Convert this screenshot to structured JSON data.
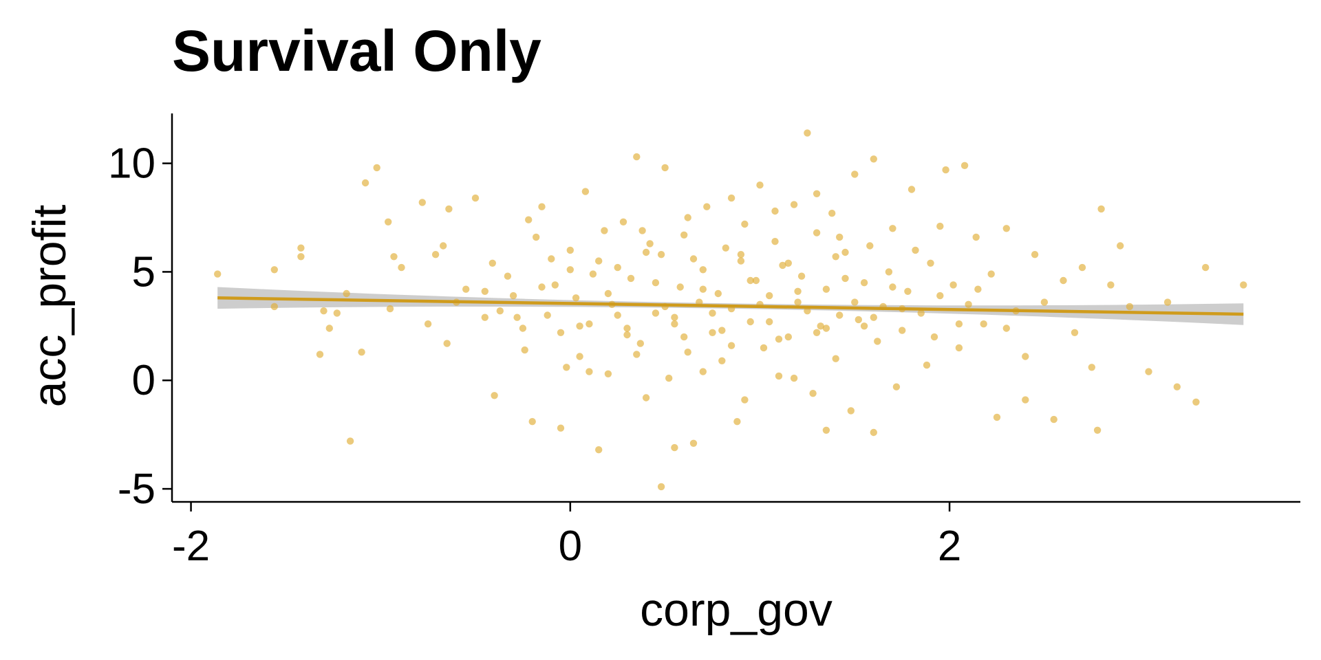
{
  "chart_data": {
    "type": "scatter",
    "title": "Survival Only",
    "xlabel": "corp_gov",
    "ylabel": "acc_profit",
    "xlim": [
      -2.1,
      3.85
    ],
    "ylim": [
      -5.6,
      12.3
    ],
    "xticks": [
      -2,
      0,
      2
    ],
    "xtick_labels": [
      "-2",
      "0",
      "2"
    ],
    "yticks": [
      -5,
      0,
      5,
      10
    ],
    "ytick_labels": [
      "-5",
      "0",
      "5",
      "10"
    ],
    "grid": false,
    "legend": "none",
    "point_color": "#e0ad35",
    "point_opacity": 0.65,
    "line_color": "#cf9b1c",
    "band_color": "#c8c8c8",
    "regression": {
      "x": [
        -1.86,
        3.55
      ],
      "y": [
        3.8,
        3.05
      ],
      "ci_half_width_ends": 0.5,
      "ci_half_width_center": 0.12
    },
    "points": [
      [
        -1.86,
        4.9
      ],
      [
        -1.56,
        5.1
      ],
      [
        -1.56,
        3.4
      ],
      [
        -1.42,
        6.1
      ],
      [
        -1.42,
        5.7
      ],
      [
        -1.32,
        1.2
      ],
      [
        -1.27,
        2.4
      ],
      [
        -1.23,
        3.1
      ],
      [
        -1.18,
        4.0
      ],
      [
        -1.16,
        -2.8
      ],
      [
        -1.08,
        9.1
      ],
      [
        -1.02,
        9.8
      ],
      [
        -0.96,
        7.3
      ],
      [
        -0.93,
        5.7
      ],
      [
        -0.89,
        5.2
      ],
      [
        -0.78,
        8.2
      ],
      [
        -0.75,
        2.6
      ],
      [
        -0.71,
        5.8
      ],
      [
        -0.67,
        6.2
      ],
      [
        -0.64,
        7.9
      ],
      [
        -0.6,
        3.6
      ],
      [
        -0.55,
        4.2
      ],
      [
        -0.5,
        8.4
      ],
      [
        -0.45,
        4.1
      ],
      [
        -0.41,
        5.4
      ],
      [
        -0.37,
        3.2
      ],
      [
        -0.33,
        4.8
      ],
      [
        -0.28,
        2.9
      ],
      [
        -0.24,
        1.4
      ],
      [
        -0.22,
        7.4
      ],
      [
        -0.18,
        6.6
      ],
      [
        -0.15,
        8.0
      ],
      [
        -0.12,
        3.0
      ],
      [
        -0.1,
        5.6
      ],
      [
        -0.08,
        4.4
      ],
      [
        -0.05,
        2.2
      ],
      [
        -0.02,
        0.6
      ],
      [
        0.0,
        6.0
      ],
      [
        0.03,
        3.8
      ],
      [
        0.05,
        1.1
      ],
      [
        0.08,
        8.7
      ],
      [
        0.1,
        2.6
      ],
      [
        0.12,
        4.9
      ],
      [
        0.15,
        -3.2
      ],
      [
        0.18,
        6.9
      ],
      [
        0.2,
        0.3
      ],
      [
        0.22,
        3.5
      ],
      [
        0.25,
        5.2
      ],
      [
        0.28,
        7.3
      ],
      [
        0.3,
        2.4
      ],
      [
        0.32,
        4.7
      ],
      [
        0.35,
        10.3
      ],
      [
        0.37,
        1.7
      ],
      [
        0.4,
        -0.8
      ],
      [
        0.42,
        6.3
      ],
      [
        0.45,
        3.1
      ],
      [
        0.48,
        5.8
      ],
      [
        0.5,
        9.8
      ],
      [
        0.52,
        0.1
      ],
      [
        0.55,
        2.9
      ],
      [
        0.58,
        4.3
      ],
      [
        0.6,
        6.7
      ],
      [
        0.62,
        1.3
      ],
      [
        0.65,
        -2.9
      ],
      [
        0.68,
        3.6
      ],
      [
        0.7,
        5.1
      ],
      [
        0.72,
        8.0
      ],
      [
        0.75,
        2.2
      ],
      [
        0.78,
        4.0
      ],
      [
        0.8,
        0.9
      ],
      [
        0.82,
        6.1
      ],
      [
        0.85,
        3.3
      ],
      [
        0.88,
        -1.9
      ],
      [
        0.9,
        5.5
      ],
      [
        0.92,
        7.2
      ],
      [
        0.95,
        2.7
      ],
      [
        0.98,
        4.6
      ],
      [
        1.0,
        9.0
      ],
      [
        1.02,
        1.5
      ],
      [
        1.05,
        3.9
      ],
      [
        1.08,
        6.4
      ],
      [
        1.1,
        0.2
      ],
      [
        1.12,
        5.3
      ],
      [
        1.15,
        2.0
      ],
      [
        1.18,
        8.1
      ],
      [
        1.2,
        3.6
      ],
      [
        1.22,
        4.8
      ],
      [
        1.25,
        11.4
      ],
      [
        1.28,
        -0.6
      ],
      [
        1.3,
        6.8
      ],
      [
        1.32,
        2.5
      ],
      [
        1.35,
        4.2
      ],
      [
        1.38,
        7.7
      ],
      [
        1.4,
        1.0
      ],
      [
        1.42,
        3.0
      ],
      [
        1.45,
        5.9
      ],
      [
        1.48,
        -1.4
      ],
      [
        1.5,
        9.5
      ],
      [
        1.52,
        2.8
      ],
      [
        1.55,
        4.5
      ],
      [
        1.58,
        6.2
      ],
      [
        1.6,
        10.2
      ],
      [
        1.62,
        1.8
      ],
      [
        1.65,
        3.4
      ],
      [
        1.68,
        5.0
      ],
      [
        1.7,
        7.0
      ],
      [
        1.72,
        -0.3
      ],
      [
        1.75,
        2.3
      ],
      [
        1.78,
        4.1
      ],
      [
        1.8,
        8.8
      ],
      [
        1.82,
        6.0
      ],
      [
        1.85,
        3.1
      ],
      [
        1.88,
        0.7
      ],
      [
        1.9,
        5.4
      ],
      [
        1.92,
        2.0
      ],
      [
        1.95,
        7.1
      ],
      [
        1.98,
        9.7
      ],
      [
        2.02,
        4.4
      ],
      [
        2.05,
        1.5
      ],
      [
        2.08,
        9.9
      ],
      [
        2.1,
        3.5
      ],
      [
        2.14,
        6.6
      ],
      [
        2.18,
        2.6
      ],
      [
        2.22,
        4.9
      ],
      [
        2.25,
        -1.7
      ],
      [
        2.3,
        7.0
      ],
      [
        2.35,
        3.2
      ],
      [
        2.4,
        1.1
      ],
      [
        2.45,
        5.8
      ],
      [
        2.5,
        3.6
      ],
      [
        2.55,
        -1.8
      ],
      [
        2.6,
        4.6
      ],
      [
        2.66,
        2.2
      ],
      [
        2.7,
        5.2
      ],
      [
        2.75,
        0.6
      ],
      [
        2.8,
        7.9
      ],
      [
        2.85,
        4.4
      ],
      [
        2.9,
        6.2
      ],
      [
        2.95,
        3.4
      ],
      [
        3.05,
        0.4
      ],
      [
        3.15,
        3.6
      ],
      [
        3.3,
        -1.0
      ],
      [
        3.35,
        5.2
      ],
      [
        3.55,
        4.4
      ],
      [
        -0.65,
        1.7
      ],
      [
        -0.4,
        -0.7
      ],
      [
        -0.2,
        -1.9
      ],
      [
        -0.05,
        -2.2
      ],
      [
        0.48,
        -4.9
      ],
      [
        0.55,
        -3.1
      ],
      [
        1.35,
        -2.3
      ],
      [
        1.6,
        -2.4
      ],
      [
        2.78,
        -2.3
      ],
      [
        0.1,
        0.4
      ],
      [
        0.35,
        1.2
      ],
      [
        0.6,
        2.0
      ],
      [
        0.85,
        1.6
      ],
      [
        1.1,
        1.9
      ],
      [
        1.35,
        2.4
      ],
      [
        1.6,
        2.9
      ],
      [
        0.2,
        4.0
      ],
      [
        0.45,
        4.5
      ],
      [
        0.7,
        4.2
      ],
      [
        0.95,
        4.6
      ],
      [
        1.2,
        4.1
      ],
      [
        1.45,
        4.7
      ],
      [
        1.7,
        4.3
      ],
      [
        0.25,
        3.0
      ],
      [
        0.5,
        3.4
      ],
      [
        0.75,
        3.1
      ],
      [
        1.0,
        3.5
      ],
      [
        1.25,
        3.2
      ],
      [
        1.5,
        3.6
      ],
      [
        1.75,
        3.3
      ],
      [
        0.15,
        5.5
      ],
      [
        0.4,
        5.9
      ],
      [
        0.65,
        5.6
      ],
      [
        0.9,
        5.8
      ],
      [
        1.15,
        5.4
      ],
      [
        1.4,
        5.7
      ],
      [
        0.05,
        2.5
      ],
      [
        0.3,
        2.1
      ],
      [
        0.55,
        2.6
      ],
      [
        0.8,
        2.3
      ],
      [
        1.05,
        2.7
      ],
      [
        1.3,
        2.2
      ],
      [
        1.55,
        2.5
      ],
      [
        -0.3,
        3.9
      ],
      [
        -0.15,
        4.3
      ],
      [
        1.95,
        3.9
      ],
      [
        2.15,
        4.2
      ],
      [
        -0.25,
        2.4
      ],
      [
        2.05,
        2.6
      ],
      [
        0.62,
        7.5
      ],
      [
        1.08,
        7.8
      ],
      [
        0.38,
        6.9
      ],
      [
        1.42,
        6.6
      ],
      [
        0.7,
        0.4
      ],
      [
        1.18,
        0.1
      ],
      [
        0.92,
        -0.9
      ],
      [
        -1.1,
        1.3
      ],
      [
        -0.95,
        3.3
      ],
      [
        -1.3,
        3.2
      ],
      [
        3.2,
        -0.3
      ],
      [
        2.4,
        -0.9
      ],
      [
        -0.45,
        2.9
      ],
      [
        2.3,
        2.4
      ],
      [
        0.85,
        8.4
      ],
      [
        1.3,
        8.6
      ],
      [
        0.0,
        5.1
      ]
    ]
  }
}
